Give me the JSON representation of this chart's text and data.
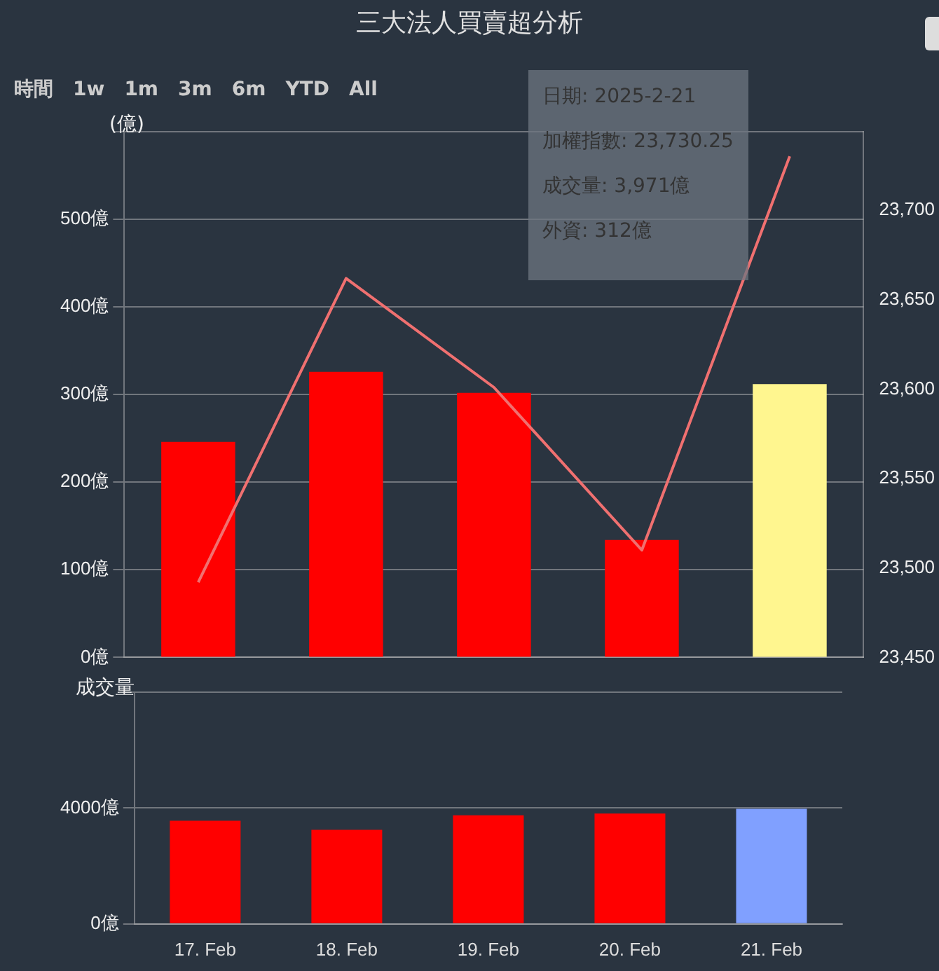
{
  "chart_data": [
    {
      "type": "bar",
      "title": "三大法人買賣超分析",
      "ylabel": "(億)",
      "categories": [
        null,
        null,
        null,
        null,
        null
      ],
      "tick_labels": "y",
      "series": [
        {
          "colors": [
            "#ff0000",
            "#ff0000",
            "#ff0000",
            "#ff0000",
            "#fff68f"
          ],
          "values": [
            246,
            326,
            302,
            134,
            312
          ]
        },
        {
          "type": "line",
          "axis": "y2",
          "color": "#f07070",
          "values": [
            23492,
            23662,
            23601,
            23510,
            23730.25
          ]
        }
      ],
      "ylim": [
        0,
        600
      ],
      "yticks": [
        {
          "value": 0,
          "label": "0億"
        },
        {
          "value": 100,
          "label": "100億"
        },
        {
          "value": 200,
          "label": "200億"
        },
        {
          "value": 300,
          "label": "300億"
        },
        {
          "value": 400,
          "label": "400億"
        },
        {
          "value": 500,
          "label": "500億"
        },
        {
          "value": 600,
          "label": null
        }
      ],
      "y2lim": [
        23450,
        23744
      ],
      "y2ticks": [
        {
          "value": 23450,
          "label": "23,450"
        },
        {
          "value": 23500,
          "label": "23,500"
        },
        {
          "value": 23550,
          "label": "23,550"
        },
        {
          "value": 23600,
          "label": "23,600"
        },
        {
          "value": 23650,
          "label": "23,650"
        },
        {
          "value": 23700,
          "label": "23,700"
        }
      ],
      "grid": "y",
      "legend": false,
      "marker": "none",
      "annotations": [
        "時間",
        "1w",
        "1m",
        "3m",
        "6m",
        "YTD",
        "All",
        "日期: 2025-2-21",
        "加權指數: 23,730.25",
        "成交量: 3,971億",
        "外資: 312億"
      ]
    },
    {
      "type": "bar",
      "ylabel": "成交量",
      "categories": [
        "17. Feb",
        "18. Feb",
        "19. Feb",
        "20. Feb",
        "21. Feb"
      ],
      "series": [
        {
          "colors": [
            "#ff0000",
            "#ff0000",
            "#ff0000",
            "#ff0000",
            "#80a0ff"
          ],
          "values": [
            3560,
            3250,
            3750,
            3810,
            3971
          ]
        }
      ],
      "ylim": [
        0,
        8000
      ],
      "yticks": [
        {
          "value": 0,
          "label": "0億"
        },
        {
          "value": 4000,
          "label": "4000億"
        },
        {
          "value": 8000,
          "label": null
        }
      ],
      "grid": "y",
      "legend": false
    }
  ]
}
